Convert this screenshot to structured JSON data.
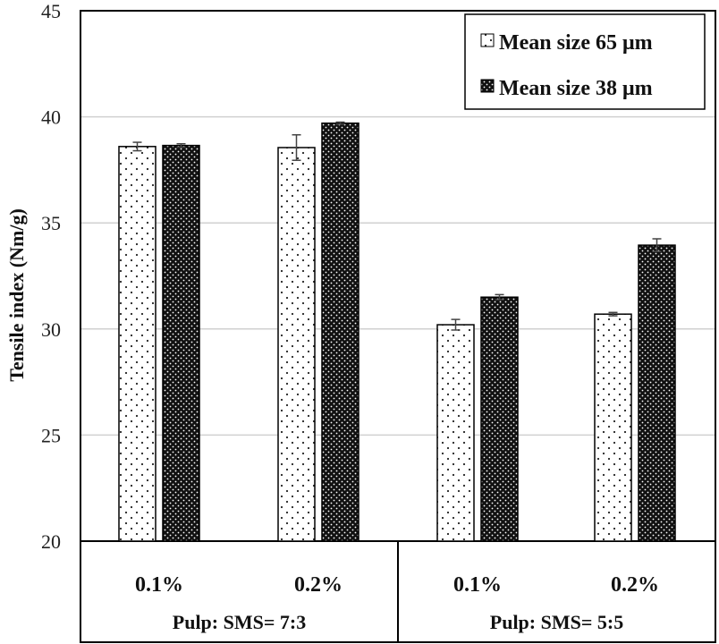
{
  "chart_data": {
    "type": "bar",
    "title": "",
    "xlabel": "",
    "ylabel": "Tensile index (Nm/g)",
    "ylim": [
      20,
      45
    ],
    "yticks": [
      20,
      25,
      30,
      35,
      40,
      45
    ],
    "grid": true,
    "legend_position": "top-right",
    "categories": [
      "0.1%",
      "0.2%",
      "0.1%",
      "0.2%"
    ],
    "groups": [
      {
        "label": "Pulp: SMS= 7:3",
        "categories": [
          "0.1%",
          "0.2%"
        ]
      },
      {
        "label": "Pulp: SMS= 5:5",
        "categories": [
          "0.1%",
          "0.2%"
        ]
      }
    ],
    "series": [
      {
        "name": "Mean size 65 μm",
        "pattern": "sparse-dots",
        "values": [
          38.6,
          38.55,
          30.2,
          30.7
        ],
        "errors": [
          0.2,
          0.6,
          0.25,
          0.08
        ]
      },
      {
        "name": "Mean size 38 μm",
        "pattern": "dense-dots",
        "values": [
          38.65,
          39.7,
          31.5,
          33.95
        ],
        "errors": [
          0.08,
          0.05,
          0.12,
          0.3
        ]
      }
    ]
  }
}
